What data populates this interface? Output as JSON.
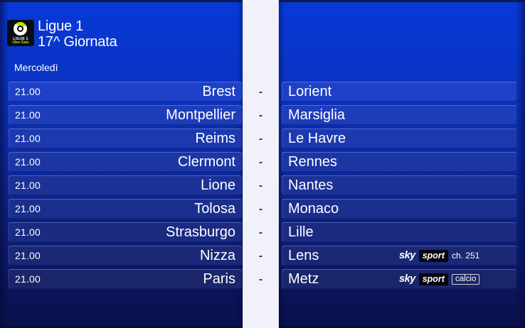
{
  "header": {
    "competition": "Ligue 1",
    "matchday": "17^ Giornata",
    "day": "Mercoledì",
    "logo": {
      "line1": "LIGUE 1",
      "line2": "Uber Eats"
    }
  },
  "separator": "-",
  "colors": {
    "background_top": "#0839d8",
    "background_bottom": "#0a1150",
    "accent_strip": "#f1f2f9",
    "dash": "#1c2256",
    "text": "#ffffff",
    "sport_box_bg": "#05060f",
    "logo_green": "#b8e600",
    "row_colors": [
      "#1e41c7",
      "#1d3dbb",
      "#1d39b0",
      "#1c36a4",
      "#1c3298",
      "#1b2f8d",
      "#1b2b81",
      "#1a2876",
      "#1a256a"
    ]
  },
  "matches": [
    {
      "time": "21.00",
      "home": "Brest",
      "away": "Lorient",
      "broadcast": null
    },
    {
      "time": "21.00",
      "home": "Montpellier",
      "away": "Marsiglia",
      "broadcast": null
    },
    {
      "time": "21.00",
      "home": "Reims",
      "away": "Le Havre",
      "broadcast": null
    },
    {
      "time": "21.00",
      "home": "Clermont",
      "away": "Rennes",
      "broadcast": null
    },
    {
      "time": "21.00",
      "home": "Lione",
      "away": "Nantes",
      "broadcast": null
    },
    {
      "time": "21.00",
      "home": "Tolosa",
      "away": "Monaco",
      "broadcast": null
    },
    {
      "time": "21.00",
      "home": "Strasburgo",
      "away": "Lille",
      "broadcast": null
    },
    {
      "time": "21.00",
      "home": "Nizza",
      "away": "Lens",
      "broadcast": {
        "brand": "sky",
        "product": "sport",
        "suffix": "ch. 251",
        "suffix_boxed": false
      }
    },
    {
      "time": "21.00",
      "home": "Paris",
      "away": "Metz",
      "broadcast": {
        "brand": "sky",
        "product": "sport",
        "suffix": "calcio",
        "suffix_boxed": true
      }
    }
  ]
}
